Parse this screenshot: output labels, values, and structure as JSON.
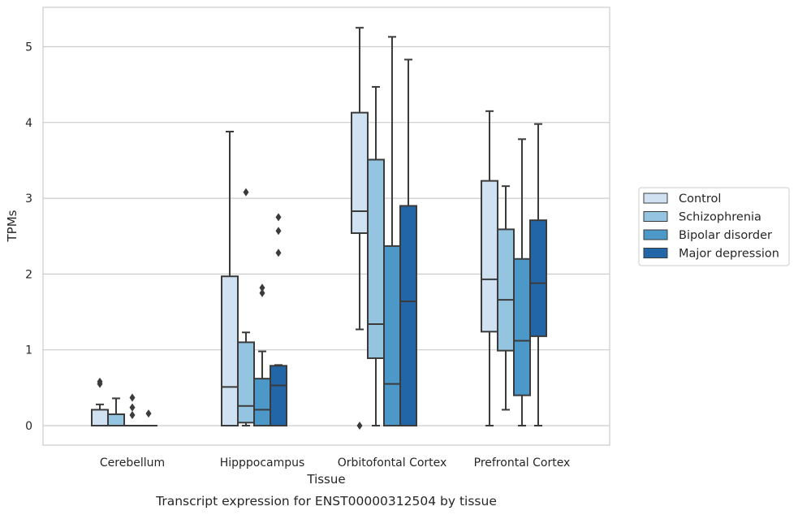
{
  "chart_data": {
    "type": "box",
    "caption": "Transcript expression for ENST00000312504 by tissue",
    "xlabel": "Tissue",
    "ylabel": "TPMs",
    "ylim": [
      -0.25,
      5.5
    ],
    "yticks": [
      0,
      1,
      2,
      3,
      4,
      5
    ],
    "grid": "horizontal",
    "legend_position": "right",
    "categories": [
      "Cerebellum",
      "Hipppocampus",
      "Orbitofontal Cortex",
      "Prefrontal Cortex"
    ],
    "series": [
      {
        "name": "Control",
        "color": "#d0e1f2",
        "boxes": [
          {
            "whislo": 0,
            "q1": 0,
            "med": 0,
            "q3": 0.21,
            "whishi": 0.28,
            "fliers": [
              0.55,
              0.58
            ]
          },
          {
            "whislo": 0,
            "q1": 0,
            "med": 0.51,
            "q3": 1.97,
            "whishi": 3.88,
            "fliers": []
          },
          {
            "whislo": 1.27,
            "q1": 2.54,
            "med": 2.83,
            "q3": 4.13,
            "whishi": 5.25,
            "fliers": [
              0
            ]
          },
          {
            "whislo": 0,
            "q1": 1.24,
            "med": 1.93,
            "q3": 3.23,
            "whishi": 4.15,
            "fliers": []
          }
        ]
      },
      {
        "name": "Schizophrenia",
        "color": "#94c4df",
        "boxes": [
          {
            "whislo": 0,
            "q1": 0,
            "med": 0,
            "q3": 0.15,
            "whishi": 0.36,
            "fliers": []
          },
          {
            "whislo": 0,
            "q1": 0.04,
            "med": 0.26,
            "q3": 1.1,
            "whishi": 1.23,
            "fliers": [
              3.08
            ]
          },
          {
            "whislo": 0,
            "q1": 0.89,
            "med": 1.34,
            "q3": 3.51,
            "whishi": 4.47,
            "fliers": []
          },
          {
            "whislo": 0.21,
            "q1": 0.99,
            "med": 1.66,
            "q3": 2.59,
            "whishi": 3.16,
            "fliers": []
          }
        ]
      },
      {
        "name": "Bipolar disorder",
        "color": "#4b98c9",
        "boxes": [
          {
            "whislo": 0,
            "q1": 0,
            "med": 0,
            "q3": 0,
            "whishi": 0,
            "fliers": [
              0.14,
              0.24,
              0.37
            ]
          },
          {
            "whislo": 0,
            "q1": 0,
            "med": 0.21,
            "q3": 0.62,
            "whishi": 0.98,
            "fliers": [
              1.75,
              1.82
            ]
          },
          {
            "whislo": 0,
            "q1": 0,
            "med": 0.55,
            "q3": 2.37,
            "whishi": 5.13,
            "fliers": []
          },
          {
            "whislo": 0,
            "q1": 0.4,
            "med": 1.12,
            "q3": 2.2,
            "whishi": 3.78,
            "fliers": []
          }
        ]
      },
      {
        "name": "Major depression",
        "color": "#2366a8",
        "boxes": [
          {
            "whislo": 0,
            "q1": 0,
            "med": 0,
            "q3": 0,
            "whishi": 0,
            "fliers": [
              0.16
            ]
          },
          {
            "whislo": 0,
            "q1": 0,
            "med": 0.53,
            "q3": 0.79,
            "whishi": 0.8,
            "fliers": [
              2.28,
              2.57,
              2.75
            ]
          },
          {
            "whislo": 0,
            "q1": 0,
            "med": 1.64,
            "q3": 2.9,
            "whishi": 4.83,
            "fliers": []
          },
          {
            "whislo": 0,
            "q1": 1.18,
            "med": 1.88,
            "q3": 2.71,
            "whishi": 3.98,
            "fliers": []
          }
        ]
      }
    ]
  }
}
